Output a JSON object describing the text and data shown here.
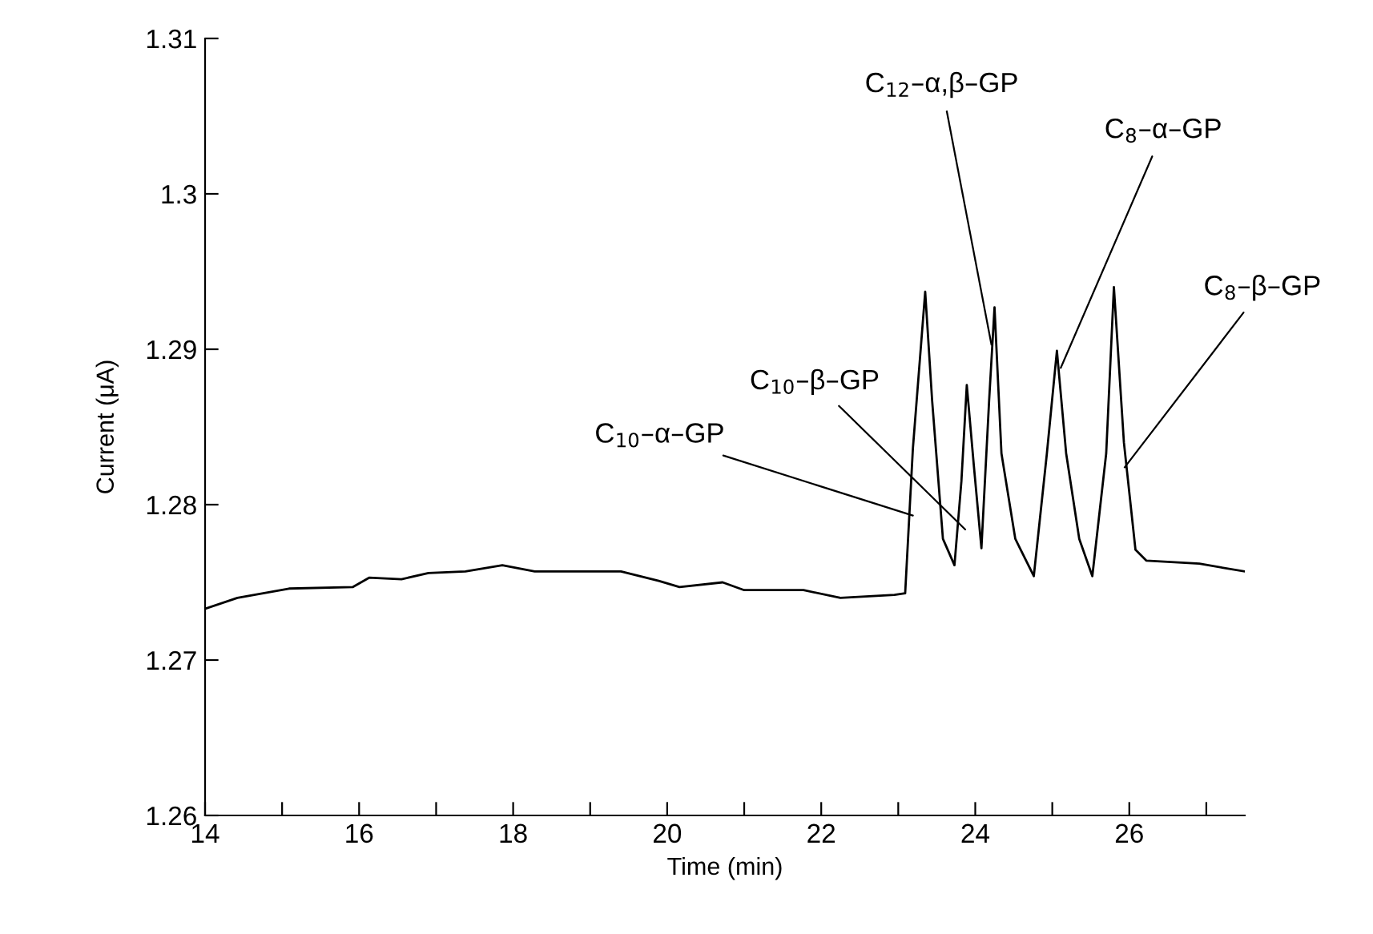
{
  "chart_data": {
    "type": "line",
    "xlabel": "Time (min)",
    "ylabel": "Current (μA)",
    "xlim": [
      14,
      27.5
    ],
    "xticks": [
      14,
      {
        "value": 15,
        "label": null
      },
      16,
      {
        "value": 17,
        "label": null
      },
      18,
      {
        "value": 19,
        "label": null
      },
      20,
      {
        "value": 21,
        "label": null
      },
      22,
      {
        "value": 23,
        "label": null
      },
      24,
      {
        "value": 25,
        "label": null
      },
      26,
      {
        "value": 27,
        "label": null
      }
    ],
    "ylim": [
      1.26,
      1.31
    ],
    "yticks": [
      1.26,
      1.27,
      1.28,
      1.29,
      1.3,
      1.31
    ],
    "grid": false,
    "legend": false,
    "marker": "none",
    "line_style": "solid",
    "series": [
      {
        "color": "#000000",
        "x": [
          14.0,
          14.42,
          15.09,
          15.92,
          16.13,
          16.55,
          16.9,
          17.38,
          17.86,
          18.28,
          19.4,
          19.89,
          20.16,
          20.72,
          21.0,
          21.77,
          22.25,
          22.95,
          23.09,
          23.19,
          23.35,
          23.44,
          23.58,
          23.73,
          23.82,
          23.89,
          23.98,
          24.08,
          24.18,
          24.25,
          24.34,
          24.52,
          24.76,
          24.93,
          25.06,
          25.18,
          25.35,
          25.52,
          25.7,
          25.8,
          25.93,
          26.08,
          26.22,
          26.91,
          27.5
        ],
        "values": [
          1.2733,
          1.274,
          1.2746,
          1.2747,
          1.2753,
          1.2752,
          1.2756,
          1.2757,
          1.2761,
          1.2757,
          1.2757,
          1.2751,
          1.2747,
          1.275,
          1.2745,
          1.2745,
          1.274,
          1.2742,
          1.2743,
          1.2836,
          1.2937,
          1.2867,
          1.2778,
          1.2761,
          1.2815,
          1.2877,
          1.2826,
          1.2772,
          1.2867,
          1.2927,
          1.2833,
          1.2778,
          1.2754,
          1.2833,
          1.2899,
          1.2833,
          1.2778,
          1.2754,
          1.2833,
          1.294,
          1.284,
          1.2771,
          1.2764,
          1.2762,
          1.2757
        ]
      }
    ],
    "annotations": [
      {
        "text": "C$_{10}$–α–GP",
        "x": 23.19,
        "y": 1.2793
      },
      {
        "text": "C$_{10}$–β–GP",
        "x": 23.87,
        "y": 1.2784
      },
      {
        "text": "C$_{12}$–α,β–GP",
        "x": 24.21,
        "y": 1.2903
      },
      {
        "text": "C$_{8}$–α–GP",
        "x": 25.11,
        "y": 1.2888
      },
      {
        "text": "C$_{8}$–β–GP",
        "x": 25.94,
        "y": 1.2824
      }
    ]
  }
}
